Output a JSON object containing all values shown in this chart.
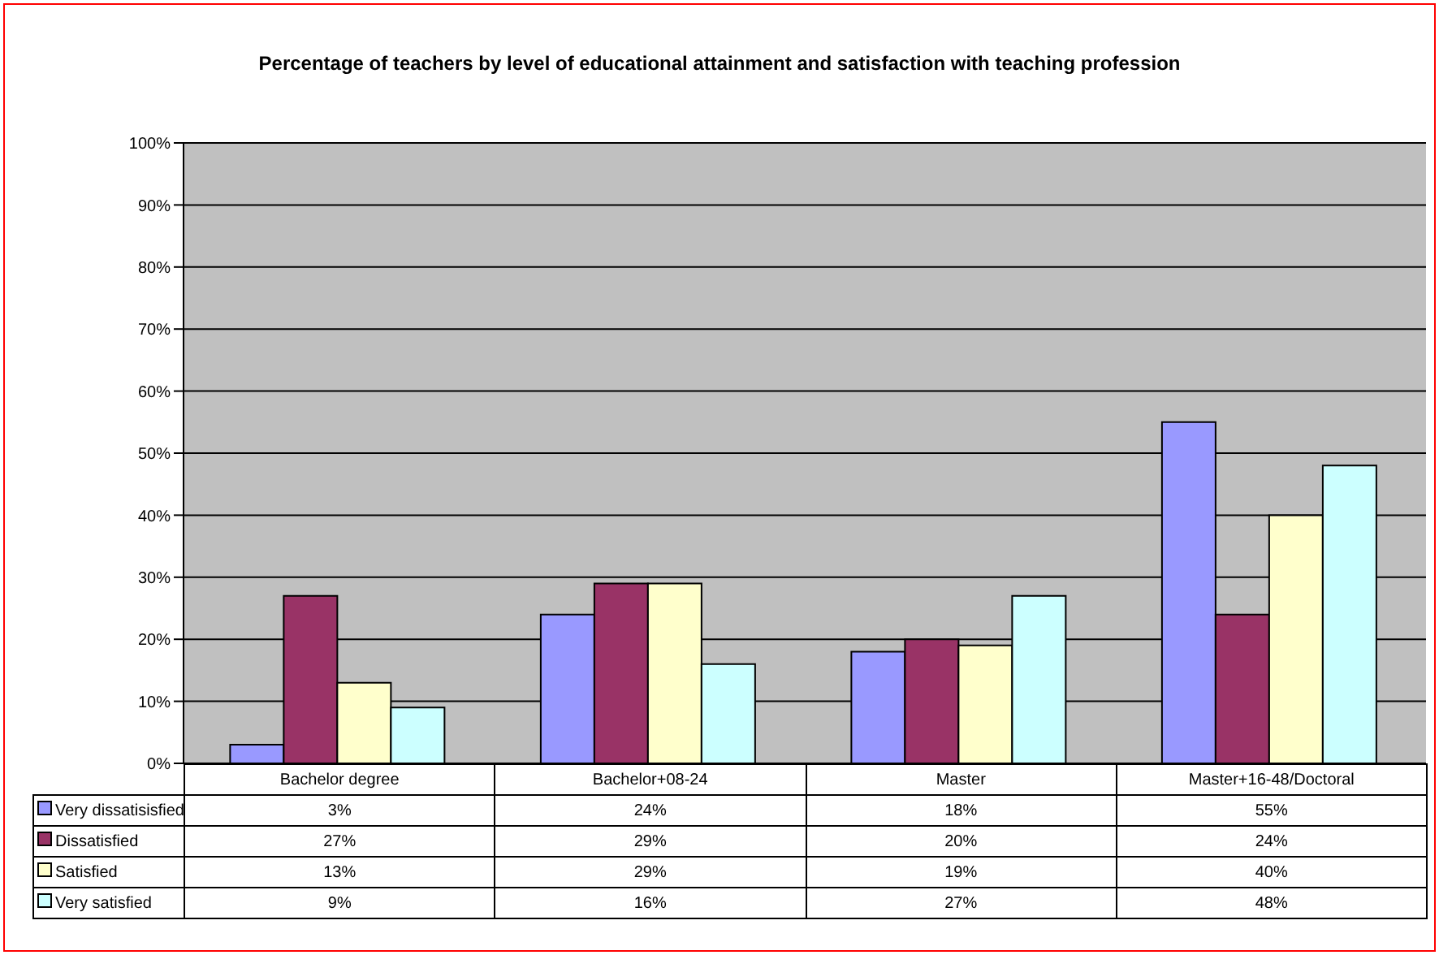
{
  "chart_data": {
    "type": "bar",
    "title": "Percentage of teachers by level of educational attainment and satisfaction with teaching profession",
    "categories": [
      "Bachelor degree",
      "Bachelor+08-24",
      "Master",
      "Master+16-48/Doctoral"
    ],
    "series": [
      {
        "name": "Very dissatisisfied",
        "color": "#9999ff",
        "values": [
          3,
          24,
          18,
          55
        ],
        "value_labels": [
          "3%",
          "24%",
          "18%",
          "55%"
        ]
      },
      {
        "name": "Dissatisfied",
        "color": "#993366",
        "values": [
          27,
          29,
          20,
          24
        ],
        "value_labels": [
          "27%",
          "29%",
          "20%",
          "24%"
        ]
      },
      {
        "name": "Satisfied",
        "color": "#ffffcc",
        "values": [
          13,
          29,
          19,
          40
        ],
        "value_labels": [
          "13%",
          "29%",
          "19%",
          "40%"
        ]
      },
      {
        "name": "Very satisfied",
        "color": "#ccffff",
        "values": [
          9,
          16,
          27,
          48
        ],
        "value_labels": [
          "9%",
          "16%",
          "27%",
          "48%"
        ]
      }
    ],
    "ylim": [
      0,
      100
    ],
    "yticks": [
      {
        "value": 0,
        "label": "0%"
      },
      {
        "value": 10,
        "label": "10%"
      },
      {
        "value": 20,
        "label": "20%"
      },
      {
        "value": 30,
        "label": "30%"
      },
      {
        "value": 40,
        "label": "40%"
      },
      {
        "value": 50,
        "label": "50%"
      },
      {
        "value": 60,
        "label": "60%"
      },
      {
        "value": 70,
        "label": "70%"
      },
      {
        "value": 80,
        "label": "80%"
      },
      {
        "value": 90,
        "label": "90%"
      },
      {
        "value": 100,
        "label": "100%"
      }
    ],
    "grid": "y",
    "legend": "bottom"
  }
}
